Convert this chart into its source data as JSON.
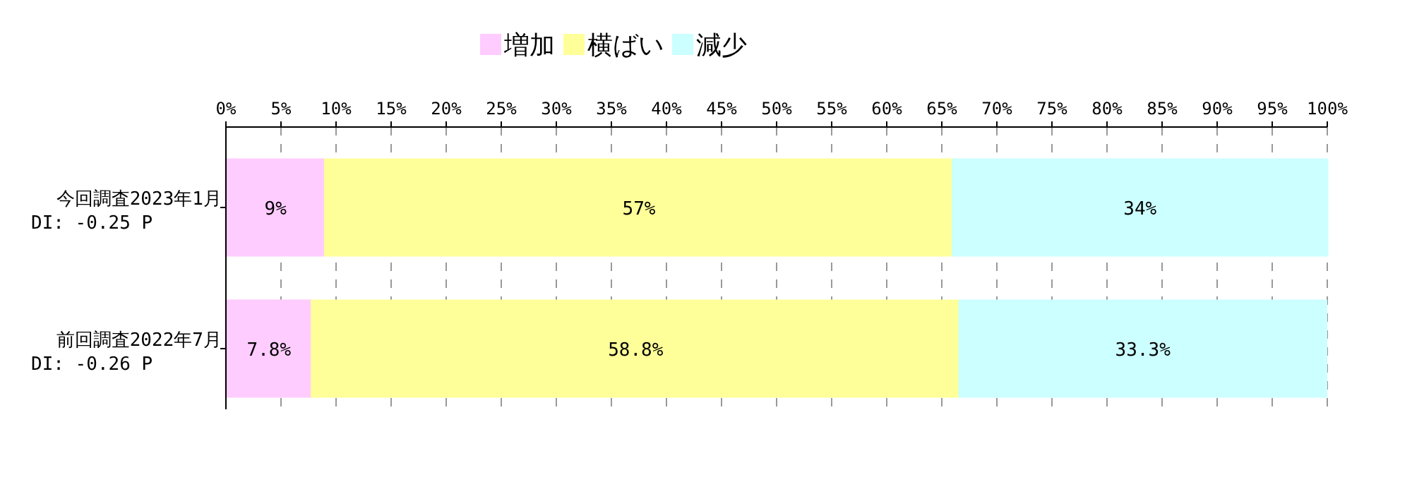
{
  "chart_data": {
    "type": "bar",
    "orientation": "horizontal",
    "stacked": true,
    "categories": [
      "今回調査2023年1月\nDI: -0.25 P",
      "前回調査2022年7月\nDI: -0.26 P"
    ],
    "series": [
      {
        "name": "増加",
        "color": "#ffccff",
        "values": [
          9,
          7.8
        ],
        "value_labels": [
          "9%",
          "7.8%"
        ]
      },
      {
        "name": "横ばい",
        "color": "#ffff99",
        "values": [
          57,
          58.8
        ],
        "value_labels": [
          "57%",
          "58.8%"
        ]
      },
      {
        "name": "減少",
        "color": "#ccffff",
        "values": [
          34,
          33.3
        ],
        "value_labels": [
          "34%",
          "33.3%"
        ]
      }
    ],
    "xlim": [
      0,
      100
    ],
    "xticks": [
      {
        "value": 0,
        "label": "0%"
      },
      {
        "value": 5,
        "label": "5%"
      },
      {
        "value": 10,
        "label": "10%"
      },
      {
        "value": 15,
        "label": "15%"
      },
      {
        "value": 20,
        "label": "20%"
      },
      {
        "value": 25,
        "label": "25%"
      },
      {
        "value": 30,
        "label": "30%"
      },
      {
        "value": 35,
        "label": "35%"
      },
      {
        "value": 40,
        "label": "40%"
      },
      {
        "value": 45,
        "label": "45%"
      },
      {
        "value": 50,
        "label": "50%"
      },
      {
        "value": 55,
        "label": "55%"
      },
      {
        "value": 60,
        "label": "60%"
      },
      {
        "value": 65,
        "label": "65%"
      },
      {
        "value": 70,
        "label": "70%"
      },
      {
        "value": 75,
        "label": "75%"
      },
      {
        "value": 80,
        "label": "80%"
      },
      {
        "value": 85,
        "label": "85%"
      },
      {
        "value": 90,
        "label": "90%"
      },
      {
        "value": 95,
        "label": "95%"
      },
      {
        "value": 100,
        "label": "100%"
      }
    ],
    "grid": "x",
    "legend": "top"
  }
}
